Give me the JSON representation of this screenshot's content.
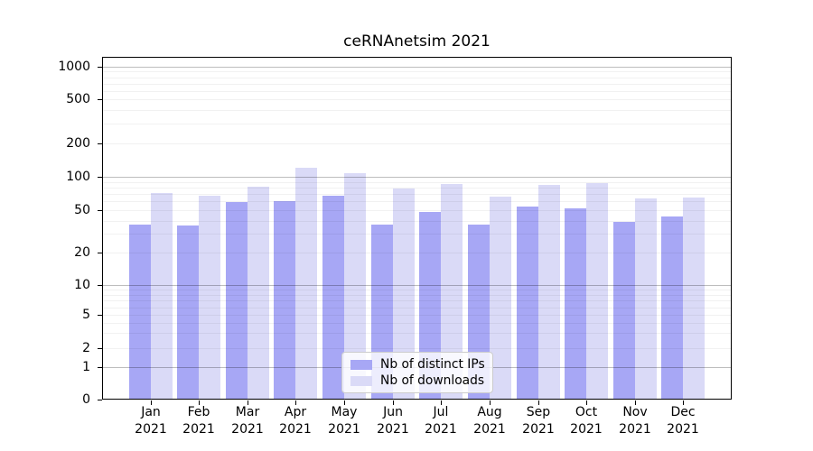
{
  "chart_data": {
    "type": "bar",
    "title": "ceRNAnetsim 2021",
    "year": "2021",
    "months": [
      "Jan",
      "Feb",
      "Mar",
      "Apr",
      "May",
      "Jun",
      "Jul",
      "Aug",
      "Sep",
      "Oct",
      "Nov",
      "Dec"
    ],
    "series": [
      {
        "name": "Nb of distinct IPs",
        "color": "#a7a7f5",
        "values": [
          37,
          36,
          59,
          60,
          68,
          37,
          48,
          37,
          54,
          52,
          39,
          44
        ]
      },
      {
        "name": "Nb of downloads",
        "color": "#dadaf7",
        "values": [
          72,
          68,
          82,
          120,
          108,
          78,
          86,
          67,
          85,
          88,
          64,
          65
        ]
      }
    ],
    "yscale": "symlog",
    "yticks": [
      0,
      1,
      2,
      5,
      10,
      20,
      50,
      100,
      200,
      500,
      1000
    ],
    "ylim": [
      0,
      1200
    ],
    "grid": {
      "major_lines": [
        1,
        10,
        100,
        1000
      ],
      "minor_multiples_per_decade": [
        2,
        3,
        4,
        5,
        6,
        7,
        8,
        9
      ],
      "minor_decades": [
        1,
        10,
        100
      ]
    },
    "legend_position": "lower center",
    "xlabel": "",
    "ylabel": ""
  }
}
